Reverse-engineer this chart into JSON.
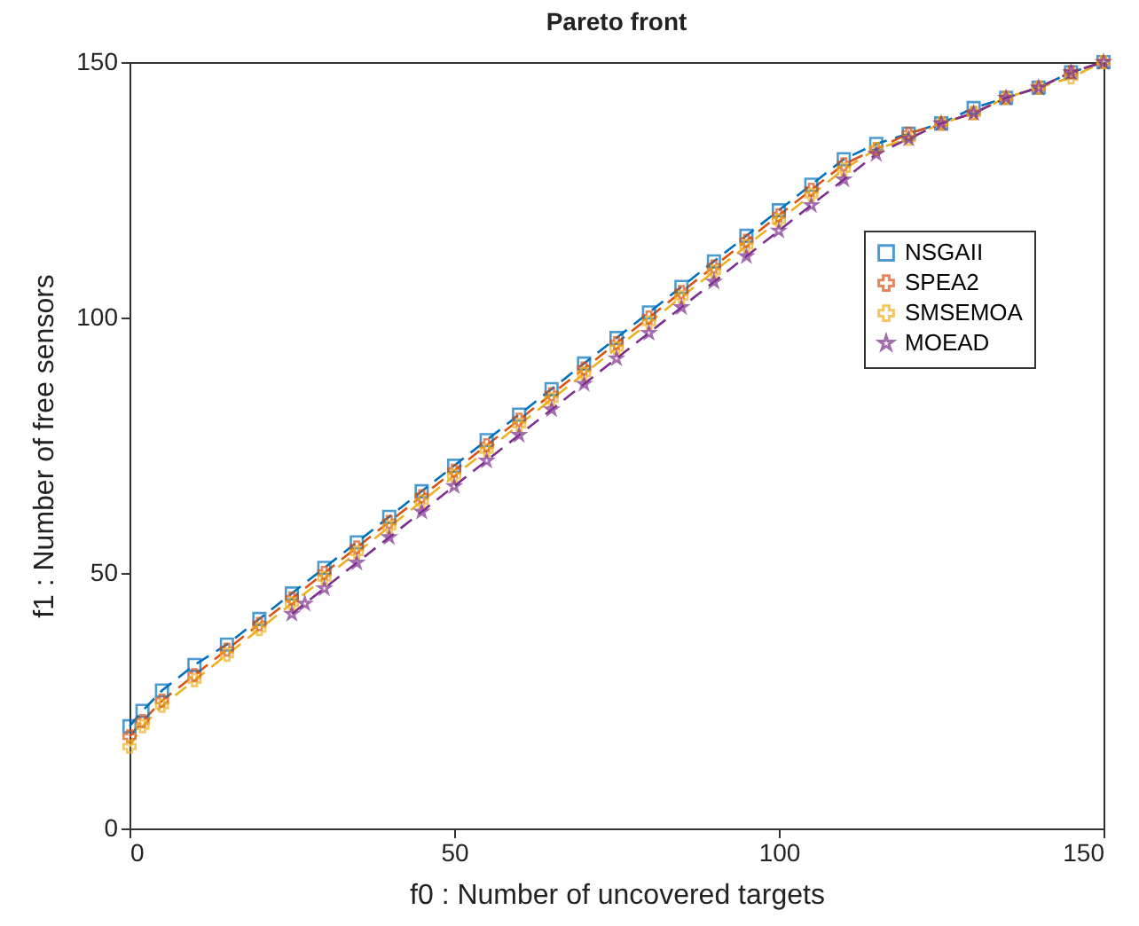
{
  "chart_data": {
    "type": "line",
    "title": "Pareto front",
    "xlabel": "f0 : Number of uncovered targets",
    "ylabel": "f1 : Number of free sensors",
    "xlim": [
      0,
      150
    ],
    "ylim": [
      0,
      150
    ],
    "xticks": [
      0,
      50,
      100,
      150
    ],
    "yticks": [
      0,
      50,
      100,
      150
    ],
    "legend": "right",
    "line_style": "dashed",
    "x": [
      0,
      2,
      5,
      10,
      15,
      20,
      25,
      30,
      35,
      40,
      45,
      50,
      55,
      60,
      65,
      70,
      75,
      80,
      85,
      90,
      95,
      100,
      105,
      110,
      115,
      120,
      125,
      130,
      135,
      140,
      145,
      150
    ],
    "series": [
      {
        "name": "NSGAII",
        "color": "#0072bd",
        "marker": "square",
        "values": [
          20,
          23,
          27,
          32,
          36,
          41,
          46,
          51,
          56,
          61,
          66,
          71,
          76,
          81,
          86,
          91,
          96,
          101,
          106,
          111,
          116,
          121,
          126,
          131,
          134,
          136,
          138,
          141,
          143,
          145,
          148,
          150
        ]
      },
      {
        "name": "SPEA2",
        "color": "#d95319",
        "marker": "cross",
        "values": [
          18,
          21,
          25,
          30,
          35,
          40,
          45,
          50,
          55,
          60,
          65,
          70,
          75,
          80,
          85,
          90,
          95,
          100,
          105,
          110,
          115,
          120,
          125,
          130,
          133,
          136,
          138,
          140,
          143,
          145,
          148,
          150
        ]
      },
      {
        "name": "SMSEMOA",
        "color": "#edb120",
        "marker": "cross",
        "values": [
          16,
          20,
          24,
          29,
          34,
          39,
          44,
          49,
          54,
          59,
          64,
          69,
          74,
          79,
          84,
          89,
          94,
          99,
          104,
          109,
          114,
          119,
          124,
          129,
          133,
          135,
          138,
          140,
          143,
          145,
          147,
          150
        ]
      },
      {
        "name": "MOEAD",
        "color": "#7e2f8e",
        "marker": "star",
        "x": [
          25,
          27,
          30,
          35,
          40,
          45,
          50,
          55,
          60,
          65,
          70,
          75,
          80,
          85,
          90,
          95,
          100,
          105,
          110,
          115,
          120,
          125,
          130,
          135,
          140,
          145,
          150
        ],
        "values": [
          42,
          44,
          47,
          52,
          57,
          62,
          67,
          72,
          77,
          82,
          87,
          92,
          97,
          102,
          107,
          112,
          117,
          122,
          127,
          132,
          135,
          138,
          140,
          143,
          145,
          148,
          150
        ]
      }
    ]
  }
}
